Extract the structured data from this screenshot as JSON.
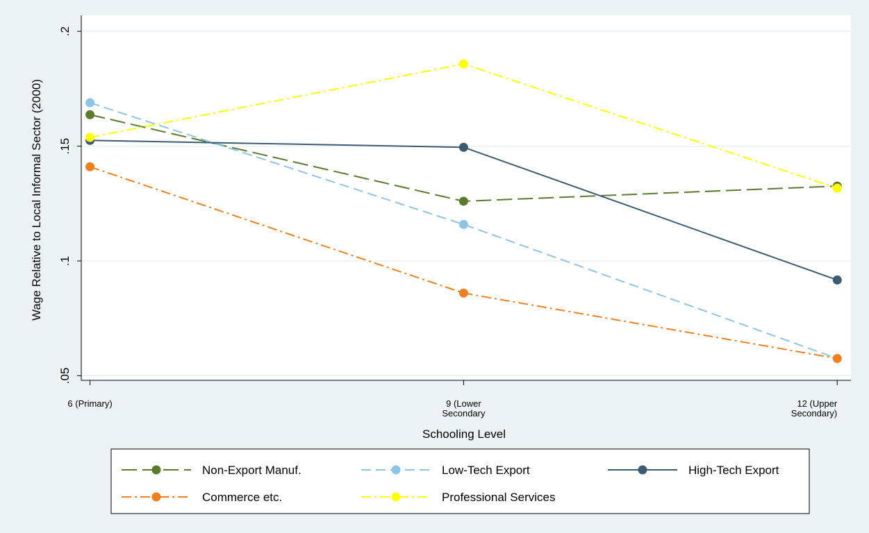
{
  "chart_data": {
    "type": "line",
    "x_label": "Schooling Level",
    "y_label": "Wage Relative to Local Informal Sector (2000)",
    "x": [
      6,
      9,
      12
    ],
    "xlim": [
      5.93,
      12.11
    ],
    "xticks": [
      {
        "value": 6,
        "label": "6 (Primary)"
      },
      {
        "value": 9,
        "label": "9 (Lower\nSecondary"
      },
      {
        "value": 12,
        "label": "12 (Upper\nSecondary)"
      }
    ],
    "ylim": [
      0.048,
      0.207
    ],
    "yticks": [
      {
        "value": 0.05,
        "label": ".05"
      },
      {
        "value": 0.1,
        "label": ".1"
      },
      {
        "value": 0.15,
        "label": ".15"
      },
      {
        "value": 0.2,
        "label": ".2"
      }
    ],
    "grid": true,
    "legend": "bottom",
    "series": [
      {
        "name": "Non-Export Manuf.",
        "color": "#5a7a2e",
        "dash": "22,8",
        "values": [
          0.1637,
          0.126,
          0.1326
        ]
      },
      {
        "name": "Low-Tech Export",
        "color": "#8ec4e8",
        "dash": "14,7",
        "values": [
          0.1689,
          0.1159,
          0.0575
        ]
      },
      {
        "name": "High-Tech Export",
        "color": "#3d5a73",
        "dash": "none",
        "values": [
          0.1525,
          0.1495,
          0.0917
        ]
      },
      {
        "name": "Commerce etc.",
        "color": "#f07f1e",
        "dash": "14,5,3,5",
        "values": [
          0.141,
          0.086,
          0.0575
        ]
      },
      {
        "name": "Professional Services",
        "color": "#ffff00",
        "dash": "14,5,3,5",
        "values": [
          0.1538,
          0.1858,
          0.1317
        ]
      }
    ]
  }
}
